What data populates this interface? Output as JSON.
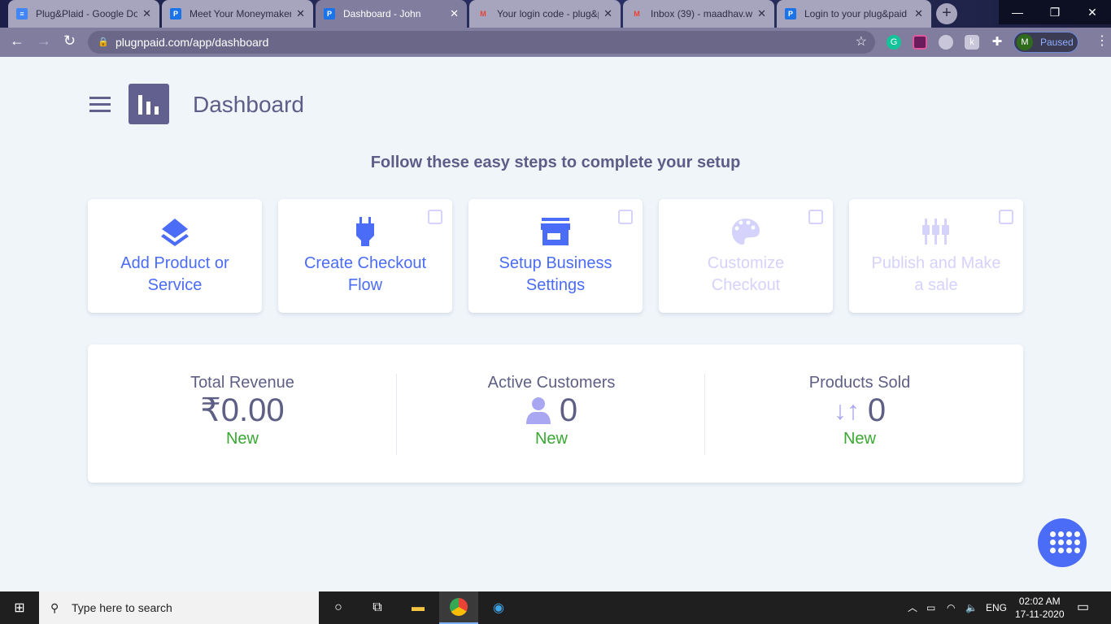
{
  "browser": {
    "tabs": [
      {
        "title": "Plug&Plaid - Google Docs",
        "icon": "google-docs-icon",
        "color": "#4285f4"
      },
      {
        "title": "Meet Your Moneymaker",
        "icon": "plugnpaid-icon",
        "color": "#1a73e8"
      },
      {
        "title": "Dashboard - John",
        "icon": "plugnpaid-icon",
        "color": "#1a73e8",
        "active": true
      },
      {
        "title": "Your login code - plug&paid",
        "icon": "gmail-icon",
        "color": "#ea4335"
      },
      {
        "title": "Inbox (39) - maadhav.w",
        "icon": "gmail-icon",
        "color": "#ea4335"
      },
      {
        "title": "Login to your plug&paid",
        "icon": "plugnpaid-icon",
        "color": "#1a73e8"
      }
    ],
    "url": "plugnpaid.com/app/dashboard",
    "profile_initial": "M",
    "profile_status": "Paused",
    "fav_letter": "P",
    "close": "✕"
  },
  "page": {
    "title": "Dashboard",
    "subtitle": "Follow these easy steps to complete your setup",
    "steps": [
      {
        "label": "Add Product or Service",
        "icon": "layers-icon",
        "enabled": true,
        "checkbox": false
      },
      {
        "label": "Create Checkout Flow",
        "icon": "plug-icon",
        "enabled": true,
        "checkbox": true
      },
      {
        "label": "Setup Business Settings",
        "icon": "store-icon",
        "enabled": true,
        "checkbox": true
      },
      {
        "label": "Customize Checkout",
        "icon": "palette-icon",
        "enabled": false,
        "checkbox": true
      },
      {
        "label": "Publish and Make a sale",
        "icon": "sliders-icon",
        "enabled": false,
        "checkbox": true
      }
    ],
    "stats": [
      {
        "label": "Total Revenue",
        "value": "₹0.00",
        "badge": "New"
      },
      {
        "label": "Active Customers",
        "value": "0",
        "badge": "New",
        "icon": "user-icon"
      },
      {
        "label": "Products Sold",
        "value": "0",
        "badge": "New",
        "icon": "sort-arrows-icon",
        "arrows": "↓↑"
      }
    ],
    "colors": {
      "accent": "#4a6cf7",
      "disabled": "#d5d2fb",
      "new": "#3aa832",
      "heading": "#5c5e88"
    }
  },
  "taskbar": {
    "search_placeholder": "Type here to search",
    "lang": "ENG",
    "time": "02:02 AM",
    "date": "17-11-2020"
  }
}
